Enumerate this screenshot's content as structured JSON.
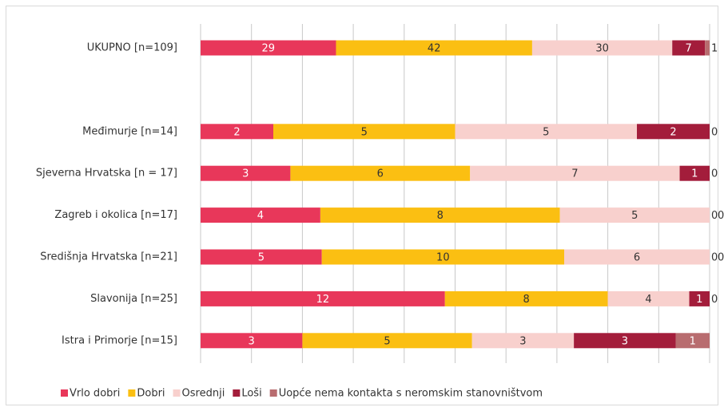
{
  "chart_data": {
    "type": "stacked_bar_100",
    "categories": [
      "UKUPNO [n=109]",
      null,
      "Međimurje [n=14]",
      "Sjeverna Hrvatska [n = 17]",
      "Zagreb i okolica [n=17]",
      "Središnja Hrvatska [n=21]",
      "Slavonija [n=25]",
      "Istra i Primorje [n=15]"
    ],
    "series": [
      {
        "name": "Vrlo dobri",
        "color": "#e8375a",
        "values": [
          29,
          null,
          2,
          3,
          4,
          5,
          12,
          3
        ]
      },
      {
        "name": "Dobri",
        "color": "#fbbf12",
        "values": [
          42,
          null,
          5,
          6,
          8,
          10,
          8,
          5
        ]
      },
      {
        "name": "Osrednji",
        "color": "#f8d0cd",
        "values": [
          30,
          null,
          5,
          7,
          5,
          6,
          4,
          3
        ]
      },
      {
        "name": "Loši",
        "color": "#a31d3b",
        "values": [
          7,
          null,
          2,
          1,
          0,
          0,
          1,
          3
        ]
      },
      {
        "name": "Uopće nema kontakta s neromskim stanovništvom",
        "color": "#b86c6f",
        "values": [
          1,
          null,
          0,
          0,
          0,
          0,
          0,
          1
        ]
      }
    ],
    "xlim": [
      0,
      100
    ],
    "xticks": [
      0,
      10,
      20,
      30,
      40,
      50,
      60,
      70,
      80,
      90,
      100
    ],
    "grid": true,
    "legend": "bottom"
  }
}
